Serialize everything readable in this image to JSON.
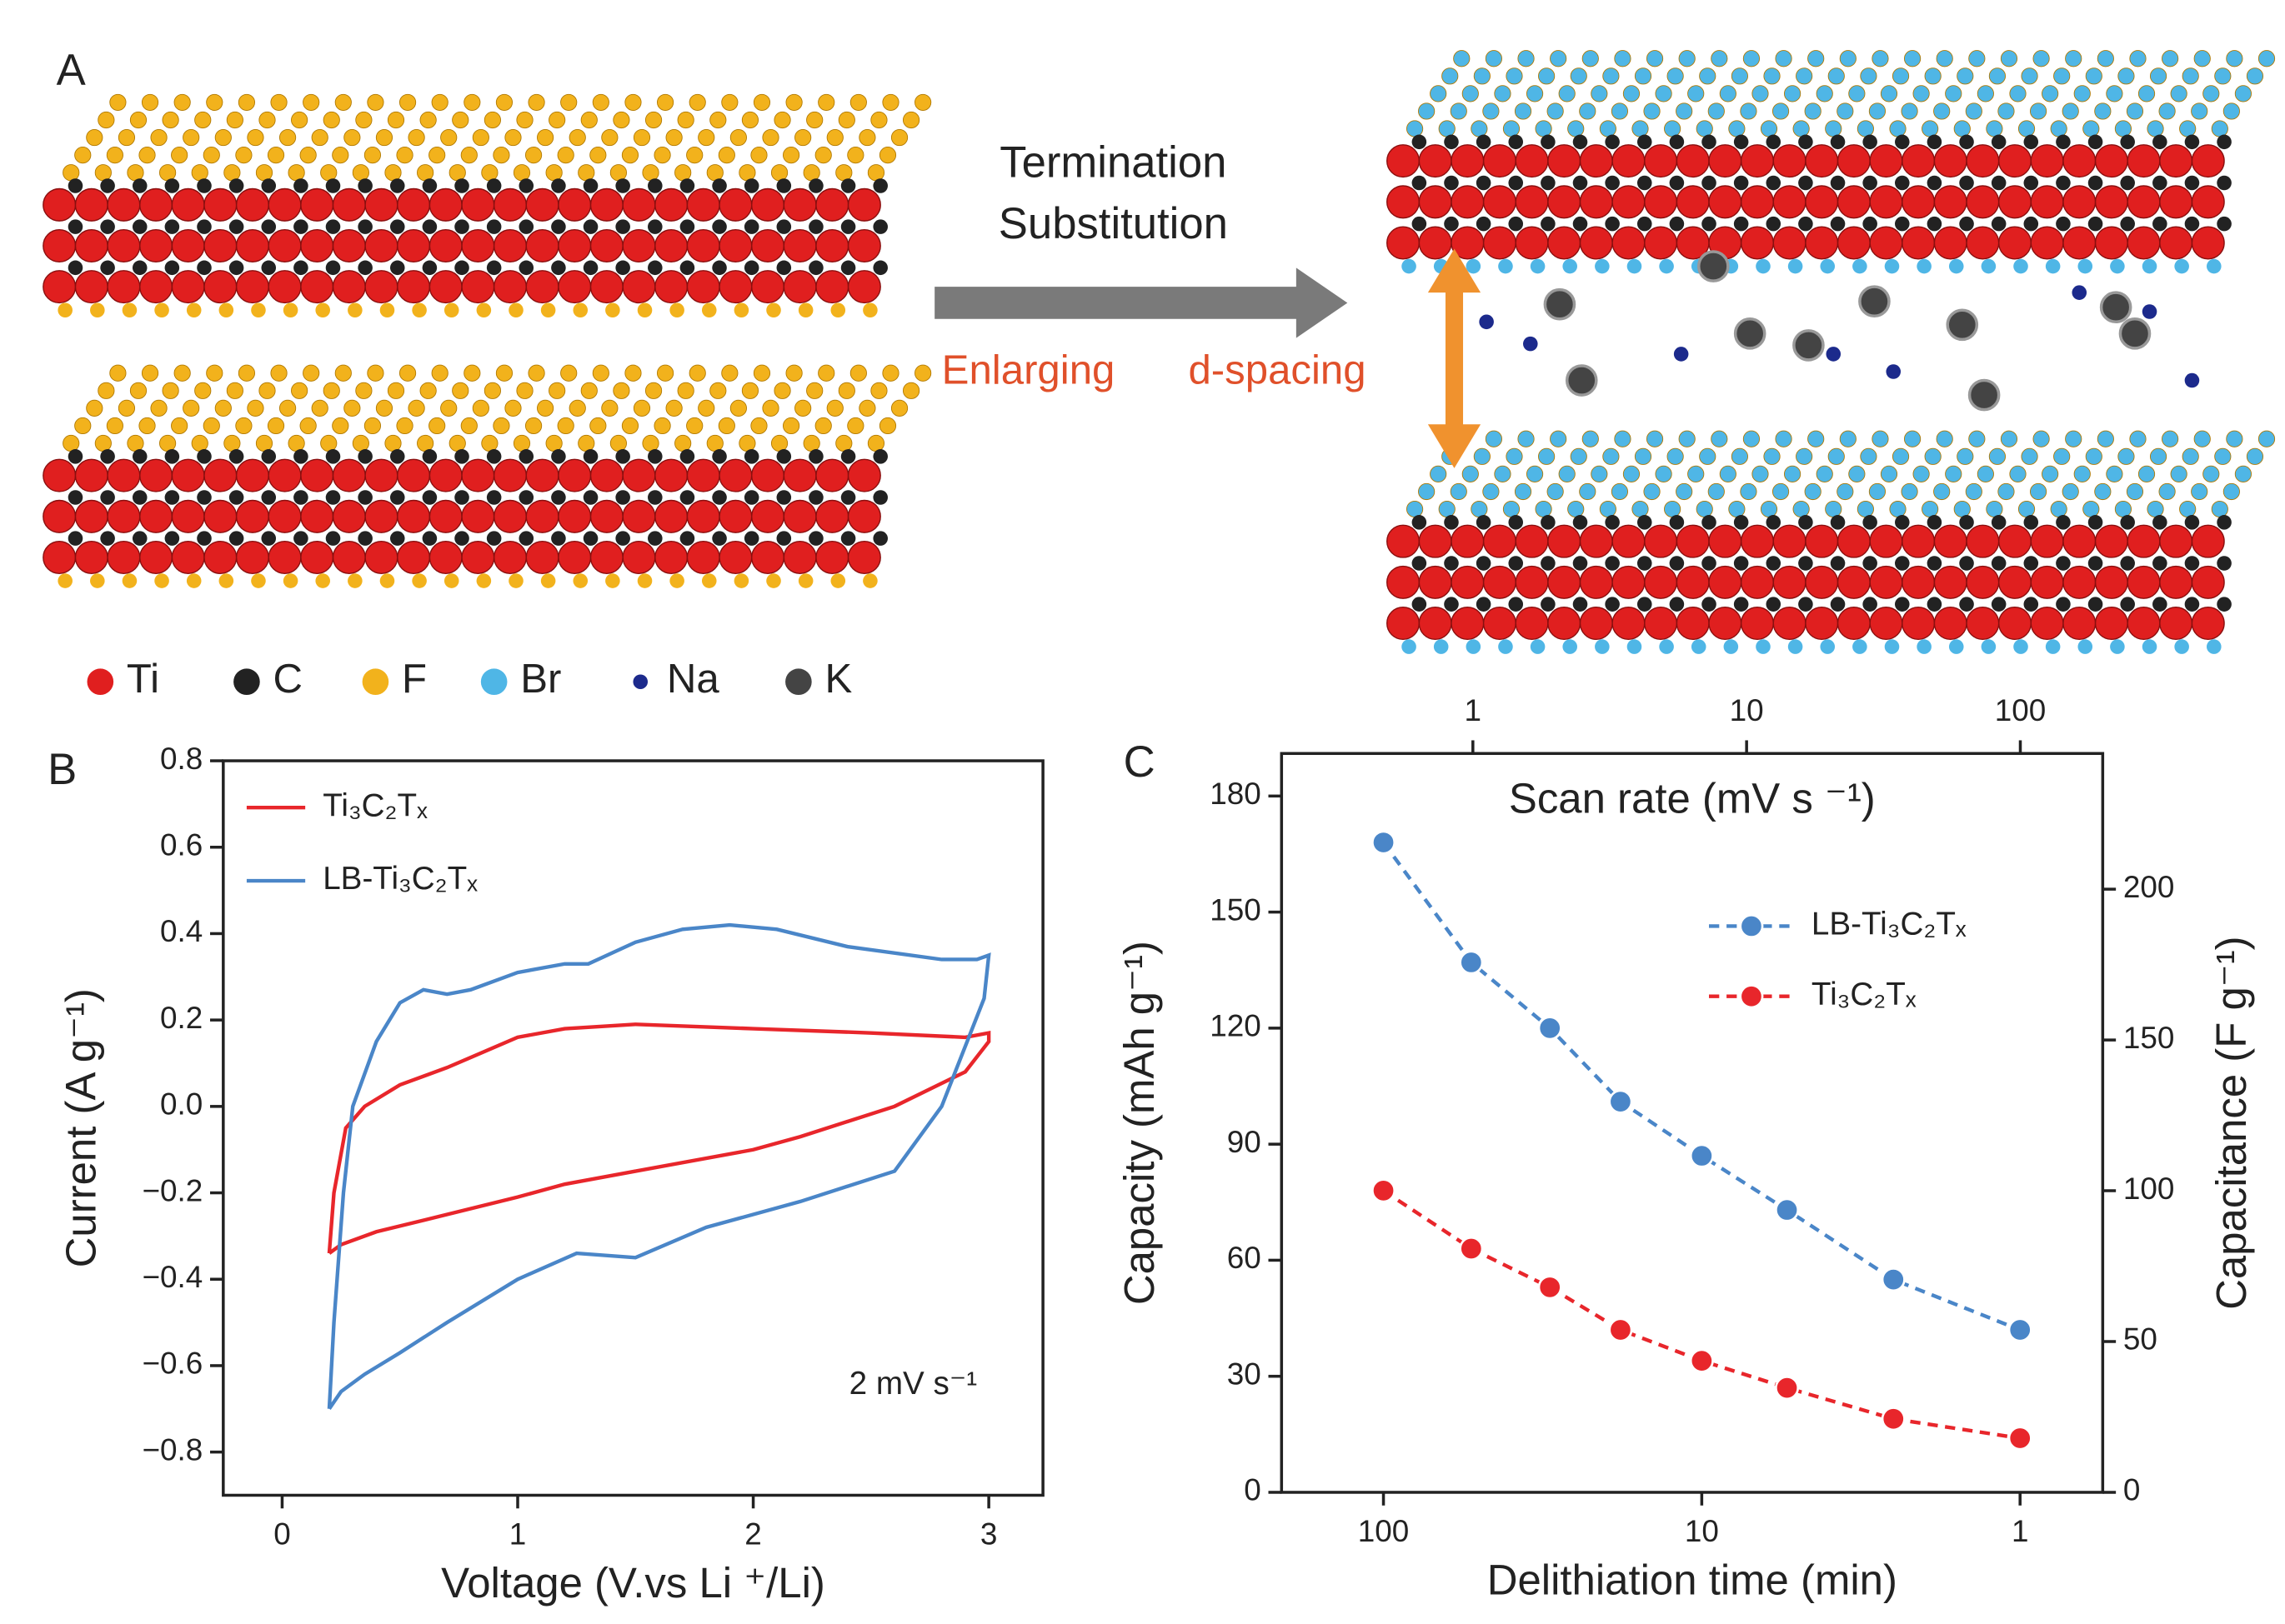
{
  "panel_a": {
    "label": "A",
    "arrow_text": [
      "Termination",
      "Substitution"
    ],
    "enlarging": "Enlarging",
    "d_spacing": "d-spacing",
    "legend": [
      "Ti",
      "C",
      "F",
      "Br",
      "Na",
      "K"
    ]
  },
  "chart_data": [
    {
      "type": "line",
      "panel_label": "B",
      "xlabel": "Voltage (V.vs Li ⁺/Li)",
      "ylabel": "Current (A g⁻¹)",
      "annotation": "2 mV s⁻¹",
      "xlim": [
        -0.25,
        3.23
      ],
      "xticks": [
        0,
        1,
        2,
        3
      ],
      "ylim": [
        -0.9,
        0.8
      ],
      "yticks": [
        {
          "value": -0.8,
          "label": "−0.8"
        },
        {
          "value": -0.6,
          "label": "−0.6"
        },
        {
          "value": -0.4,
          "label": "−0.4"
        },
        {
          "value": -0.2,
          "label": "−0.2"
        },
        {
          "value": 0,
          "label": "0.0"
        },
        0.2,
        0.4,
        0.6,
        0.8
      ],
      "series": [
        {
          "name": "Ti₃C₂Tₓ",
          "color": "#e8262b",
          "x": [
            0.2,
            0.22,
            0.27,
            0.35,
            0.5,
            0.7,
            1.0,
            1.2,
            1.5,
            2.0,
            2.5,
            2.9,
            3.0,
            3.0,
            2.9,
            2.6,
            2.2,
            2.0,
            1.5,
            1.2,
            1.0,
            0.7,
            0.4,
            0.25,
            0.2
          ],
          "values": [
            -0.34,
            -0.2,
            -0.05,
            0.0,
            0.05,
            0.09,
            0.16,
            0.18,
            0.19,
            0.18,
            0.17,
            0.16,
            0.17,
            0.15,
            0.08,
            0.0,
            -0.07,
            -0.1,
            -0.15,
            -0.18,
            -0.21,
            -0.25,
            -0.29,
            -0.32,
            -0.34
          ]
        },
        {
          "name": "LB-Ti₃C₂Tₓ",
          "color": "#4a86c8",
          "x": [
            0.2,
            0.22,
            0.26,
            0.3,
            0.4,
            0.5,
            0.6,
            0.7,
            0.8,
            1.0,
            1.2,
            1.3,
            1.5,
            1.7,
            1.9,
            2.1,
            2.4,
            2.8,
            2.95,
            3.0,
            2.98,
            2.8,
            2.6,
            2.2,
            1.8,
            1.5,
            1.25,
            1.0,
            0.7,
            0.5,
            0.35,
            0.25,
            0.2
          ],
          "values": [
            -0.7,
            -0.5,
            -0.2,
            0.0,
            0.15,
            0.24,
            0.27,
            0.26,
            0.27,
            0.31,
            0.33,
            0.33,
            0.38,
            0.41,
            0.42,
            0.41,
            0.37,
            0.34,
            0.34,
            0.35,
            0.25,
            0.0,
            -0.15,
            -0.22,
            -0.28,
            -0.35,
            -0.34,
            -0.4,
            -0.5,
            -0.57,
            -0.62,
            -0.66,
            -0.7
          ]
        }
      ]
    },
    {
      "type": "line",
      "panel_label": "C",
      "xlabel": "Delithiation time (min)",
      "x2label": "Scan rate (mV s ⁻¹)",
      "ylabel": "Capacity (mAh g⁻¹)",
      "y2label": "Capacitance (F g⁻¹)",
      "xscale": "log",
      "x2scale": "log",
      "xlim": [
        209,
        0.55
      ],
      "xticks": [
        100,
        10,
        1
      ],
      "x2lim": [
        0.2,
        200
      ],
      "x2ticks": [
        1,
        10,
        100
      ],
      "ylim": [
        0,
        191
      ],
      "yticks": [
        0,
        30,
        60,
        90,
        120,
        150,
        180
      ],
      "y2lim": [
        0,
        245
      ],
      "y2ticks": [
        0,
        50,
        100,
        150,
        200
      ],
      "x": [
        100,
        53,
        30,
        18,
        10,
        5.4,
        2.5,
        1
      ],
      "series": [
        {
          "name": "LB-Ti₃C₂Tₓ",
          "color": "#4a86c8",
          "line_style": "dashed",
          "marker": "circle",
          "values": [
            168,
            137,
            120,
            101,
            87,
            73,
            55,
            42
          ]
        },
        {
          "name": "Ti₃C₂Tₓ",
          "color": "#e8262b",
          "line_style": "dashed",
          "marker": "circle",
          "values": [
            78,
            63,
            53,
            42,
            34,
            27,
            19,
            14
          ]
        }
      ]
    }
  ]
}
